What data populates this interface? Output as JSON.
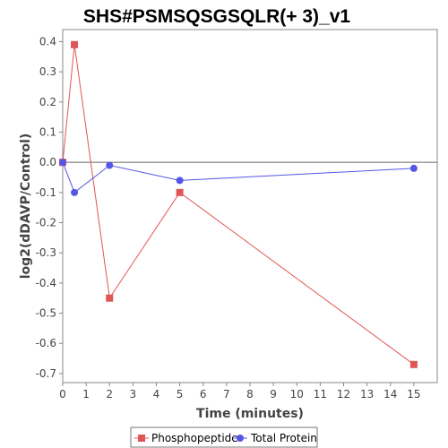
{
  "chart_data": {
    "type": "line",
    "title": "SHS#PSMSQSGSQLR(+ 3)_v1",
    "xlabel": "Time (minutes)",
    "ylabel": "log2(dDAVP/Control)",
    "xlim": [
      0,
      16
    ],
    "ylim": [
      -0.73,
      0.44
    ],
    "x_ticks": [
      0,
      1,
      2,
      3,
      4,
      5,
      6,
      7,
      8,
      9,
      10,
      11,
      12,
      13,
      14,
      15
    ],
    "y_ticks": [
      0.4,
      0.3,
      0.2,
      0.1,
      0.0,
      -0.1,
      -0.2,
      -0.3,
      -0.4,
      -0.5,
      -0.6,
      -0.7
    ],
    "y_tick_labels": [
      "0.4",
      "0.3",
      "0.2",
      "0.1",
      "0.0",
      "-0.1",
      "-0.2",
      "-0.3",
      "-0.4",
      "-0.5",
      "-0.6",
      "-0.7"
    ],
    "zero_line": true,
    "grid": false,
    "legend_position": "bottom",
    "series": [
      {
        "name": "Phosphopeptide",
        "color": "#e05555",
        "marker": "square",
        "x": [
          0,
          0.5,
          2,
          5,
          15
        ],
        "y": [
          0.0,
          0.39,
          -0.45,
          -0.1,
          -0.67
        ]
      },
      {
        "name": "Total Protein",
        "color": "#5555e6",
        "marker": "circle",
        "x": [
          0,
          0.5,
          2,
          5,
          15
        ],
        "y": [
          0.0,
          -0.1,
          -0.01,
          -0.06,
          -0.02
        ]
      }
    ]
  }
}
